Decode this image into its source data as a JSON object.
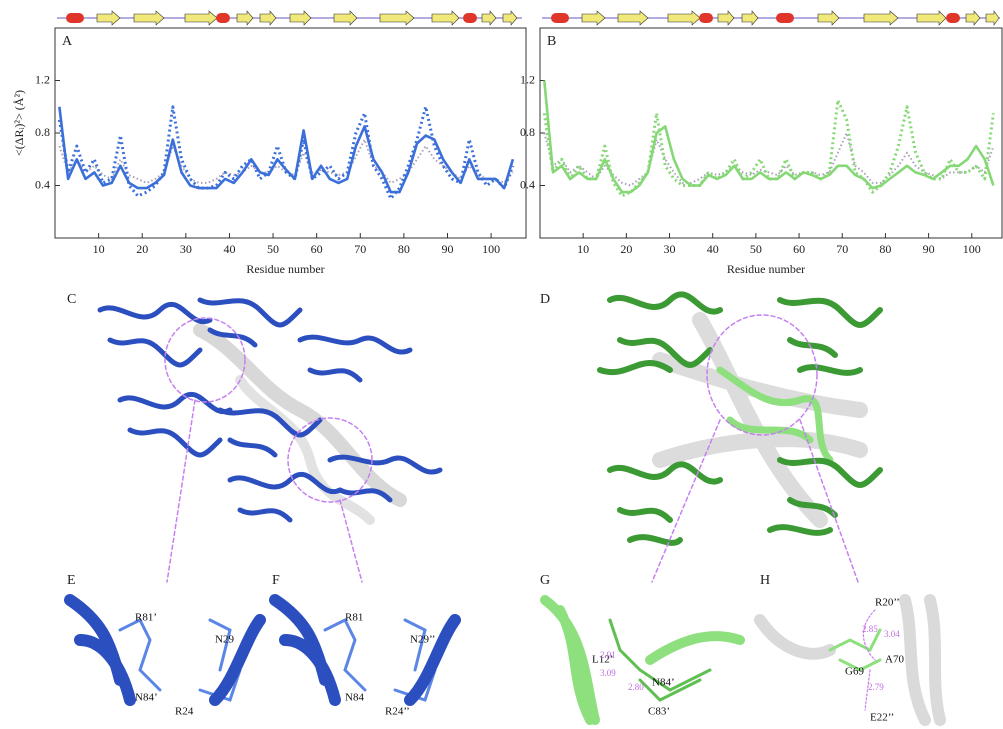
{
  "chart_data": [
    {
      "type": "line",
      "panel_label": "A",
      "y_label": "<(ΔRᵢ)²> (Å²)",
      "x_label": "Residue number",
      "xlim": [
        0,
        108
      ],
      "ylim": [
        0,
        1.6
      ],
      "xticks": [
        10,
        20,
        30,
        40,
        50,
        60,
        70,
        80,
        90,
        100
      ],
      "yticks": [
        0.4,
        0.8,
        1.2
      ],
      "x": [
        1,
        3,
        5,
        7,
        9,
        11,
        13,
        15,
        17,
        19,
        21,
        23,
        25,
        27,
        29,
        31,
        33,
        35,
        37,
        39,
        41,
        43,
        45,
        47,
        49,
        51,
        53,
        55,
        57,
        59,
        61,
        63,
        65,
        67,
        69,
        71,
        73,
        75,
        77,
        79,
        81,
        83,
        85,
        87,
        89,
        91,
        93,
        95,
        97,
        99,
        101,
        103,
        105
      ],
      "series": [
        {
          "color": "#3b6fd9",
          "style": "solid",
          "values": [
            1.0,
            0.45,
            0.6,
            0.45,
            0.5,
            0.4,
            0.42,
            0.55,
            0.42,
            0.38,
            0.38,
            0.42,
            0.48,
            0.75,
            0.5,
            0.4,
            0.38,
            0.38,
            0.38,
            0.45,
            0.42,
            0.5,
            0.6,
            0.5,
            0.48,
            0.6,
            0.52,
            0.45,
            0.82,
            0.45,
            0.55,
            0.45,
            0.42,
            0.45,
            0.7,
            0.85,
            0.6,
            0.5,
            0.35,
            0.35,
            0.5,
            0.72,
            0.78,
            0.75,
            0.6,
            0.5,
            0.42,
            0.6,
            0.45,
            0.45,
            0.45,
            0.38,
            0.6
          ]
        },
        {
          "color": "#3b6fd9",
          "style": "dotted",
          "values": [
            0.9,
            0.5,
            0.7,
            0.5,
            0.6,
            0.42,
            0.45,
            0.78,
            0.4,
            0.32,
            0.35,
            0.4,
            0.5,
            1.0,
            0.6,
            0.45,
            0.38,
            0.38,
            0.4,
            0.5,
            0.45,
            0.55,
            0.6,
            0.45,
            0.5,
            0.7,
            0.5,
            0.45,
            0.75,
            0.45,
            0.5,
            0.55,
            0.45,
            0.5,
            0.8,
            0.95,
            0.55,
            0.45,
            0.3,
            0.38,
            0.55,
            0.75,
            1.0,
            0.7,
            0.55,
            0.45,
            0.42,
            0.75,
            0.5,
            0.4,
            0.45,
            0.38,
            0.55
          ]
        },
        {
          "color": "#a8a0b8",
          "style": "gray",
          "values": [
            0.7,
            0.5,
            0.6,
            0.5,
            0.55,
            0.48,
            0.45,
            0.6,
            0.48,
            0.45,
            0.42,
            0.45,
            0.5,
            0.7,
            0.55,
            0.45,
            0.42,
            0.42,
            0.45,
            0.5,
            0.48,
            0.5,
            0.55,
            0.5,
            0.5,
            0.55,
            0.5,
            0.48,
            0.65,
            0.5,
            0.52,
            0.5,
            0.48,
            0.5,
            0.62,
            0.75,
            0.55,
            0.5,
            0.42,
            0.45,
            0.5,
            0.6,
            0.7,
            0.6,
            0.55,
            0.5,
            0.45,
            0.55,
            0.48,
            0.45,
            0.45,
            0.42,
            0.5
          ]
        }
      ]
    },
    {
      "type": "line",
      "panel_label": "B",
      "y_label": "",
      "x_label": "Residue number",
      "xlim": [
        0,
        107
      ],
      "ylim": [
        0,
        1.6
      ],
      "xticks": [
        10,
        20,
        30,
        40,
        50,
        60,
        70,
        80,
        90,
        100
      ],
      "yticks": [
        0.4,
        0.8,
        1.2
      ],
      "x": [
        1,
        3,
        5,
        7,
        9,
        11,
        13,
        15,
        17,
        19,
        21,
        23,
        25,
        27,
        29,
        31,
        33,
        35,
        37,
        39,
        41,
        43,
        45,
        47,
        49,
        51,
        53,
        55,
        57,
        59,
        61,
        63,
        65,
        67,
        69,
        71,
        73,
        75,
        77,
        79,
        81,
        83,
        85,
        87,
        89,
        91,
        93,
        95,
        97,
        99,
        101,
        103,
        105
      ],
      "series": [
        {
          "color": "#86d876",
          "style": "solid",
          "values": [
            1.2,
            0.5,
            0.55,
            0.45,
            0.5,
            0.45,
            0.45,
            0.6,
            0.45,
            0.35,
            0.35,
            0.4,
            0.5,
            0.8,
            0.85,
            0.6,
            0.45,
            0.4,
            0.4,
            0.48,
            0.45,
            0.48,
            0.55,
            0.45,
            0.45,
            0.5,
            0.45,
            0.45,
            0.5,
            0.45,
            0.5,
            0.48,
            0.45,
            0.48,
            0.55,
            0.55,
            0.48,
            0.45,
            0.38,
            0.4,
            0.45,
            0.5,
            0.55,
            0.5,
            0.48,
            0.45,
            0.5,
            0.55,
            0.55,
            0.6,
            0.7,
            0.6,
            0.4
          ]
        },
        {
          "color": "#86d876",
          "style": "dotted",
          "values": [
            0.95,
            0.5,
            0.6,
            0.45,
            0.55,
            0.45,
            0.45,
            0.7,
            0.42,
            0.32,
            0.35,
            0.42,
            0.5,
            0.95,
            0.55,
            0.45,
            0.4,
            0.4,
            0.4,
            0.5,
            0.45,
            0.5,
            0.6,
            0.45,
            0.5,
            0.6,
            0.45,
            0.45,
            0.6,
            0.45,
            0.5,
            0.5,
            0.45,
            0.5,
            1.05,
            0.9,
            0.5,
            0.45,
            0.35,
            0.4,
            0.5,
            0.7,
            1.0,
            0.65,
            0.5,
            0.45,
            0.45,
            0.6,
            0.5,
            0.5,
            0.55,
            0.45,
            0.95
          ]
        },
        {
          "color": "#a8a0b8",
          "style": "gray",
          "values": [
            0.8,
            0.55,
            0.6,
            0.5,
            0.55,
            0.5,
            0.45,
            0.55,
            0.48,
            0.42,
            0.4,
            0.45,
            0.5,
            0.75,
            0.6,
            0.5,
            0.42,
            0.42,
            0.45,
            0.5,
            0.48,
            0.5,
            0.55,
            0.5,
            0.48,
            0.52,
            0.5,
            0.48,
            0.55,
            0.48,
            0.5,
            0.5,
            0.48,
            0.5,
            0.65,
            0.8,
            0.55,
            0.5,
            0.42,
            0.42,
            0.48,
            0.55,
            0.65,
            0.55,
            0.5,
            0.48,
            0.45,
            0.5,
            0.5,
            0.5,
            0.55,
            0.5,
            0.7
          ]
        }
      ]
    }
  ],
  "structure_panels": [
    {
      "label": "C"
    },
    {
      "label": "D"
    },
    {
      "label": "E",
      "residues": [
        "R81’",
        "N29",
        "N84’",
        "R24"
      ]
    },
    {
      "label": "F",
      "residues": [
        "R81",
        "N29’’",
        "N84",
        "R24’’"
      ]
    },
    {
      "label": "G",
      "residues": [
        "L12’",
        "N84’",
        "C83’"
      ],
      "distances": [
        "2.91",
        "3.09",
        "2.80"
      ]
    },
    {
      "label": "H",
      "residues": [
        "R20’’",
        "A70",
        "G69",
        "E22’’"
      ],
      "distances": [
        "2.85",
        "3.04",
        "2.79"
      ]
    }
  ]
}
